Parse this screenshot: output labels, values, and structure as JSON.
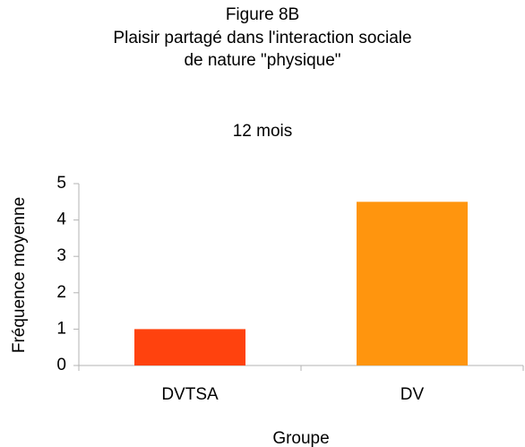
{
  "chart_data": {
    "type": "bar",
    "title": [
      "Figure 8B",
      "Plaisir partagé dans l'interaction sociale",
      "de nature \"physique\""
    ],
    "subtitle": "12 mois",
    "x_label": "Groupe",
    "y_label": "Fréquence moyenne",
    "categories": [
      "DVTSA",
      "DV"
    ],
    "values": [
      1,
      4.5
    ],
    "colors": [
      "#ff420e",
      "#ff950e"
    ],
    "ylim": [
      0,
      5
    ],
    "yticks": [
      0,
      1,
      2,
      3,
      4,
      5
    ],
    "grid": false
  }
}
